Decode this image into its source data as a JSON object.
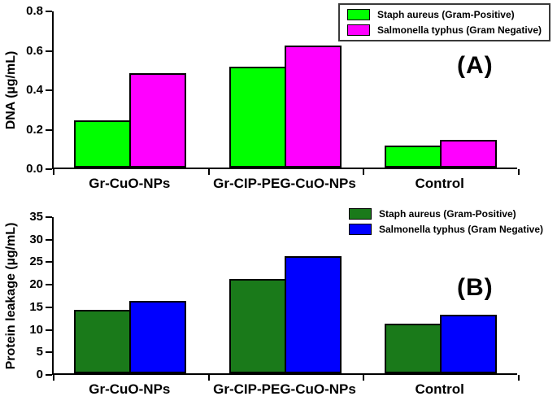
{
  "chart_data": [
    {
      "type": "bar",
      "panel_label": "(A)",
      "title": "",
      "xlabel": "",
      "ylabel": "DNA (µg/mL)",
      "categories": [
        "Gr-CuO-NPs",
        "Gr-CIP-PEG-CuO-NPs",
        "Control"
      ],
      "series": [
        {
          "name": "Staph aureus (Gram-Positive)",
          "color": "#00ff00",
          "values": [
            0.24,
            0.51,
            0.11
          ]
        },
        {
          "name": "Salmonella typhus (Gram Negative)",
          "color": "#ff00ff",
          "values": [
            0.48,
            0.62,
            0.14
          ]
        }
      ],
      "ylim": [
        0,
        0.8
      ],
      "yticks": [
        0,
        0.2,
        0.4,
        0.6,
        0.8
      ],
      "ytick_labels": [
        "0.0",
        "0.2",
        "0.4",
        "0.6",
        "0.8"
      ],
      "grid": false,
      "legend_position": "top-right",
      "legend_border": true
    },
    {
      "type": "bar",
      "panel_label": "(B)",
      "title": "",
      "xlabel": "",
      "ylabel": "Protein leakage (µg/mL)",
      "categories": [
        "Gr-CuO-NPs",
        "Gr-CIP-PEG-CuO-NPs",
        "Control"
      ],
      "series": [
        {
          "name": "Staph aureus (Gram-Positive)",
          "color": "#1a7a1a",
          "values": [
            14,
            21,
            11
          ]
        },
        {
          "name": "Salmonella typhus (Gram Negative)",
          "color": "#0000ff",
          "values": [
            16,
            26,
            13
          ]
        }
      ],
      "ylim": [
        0,
        35
      ],
      "yticks": [
        0,
        5,
        10,
        15,
        20,
        25,
        30,
        35
      ],
      "ytick_labels": [
        "0",
        "5",
        "10",
        "15",
        "20",
        "25",
        "30",
        "35"
      ],
      "grid": false,
      "legend_position": "top-right",
      "legend_border": false
    }
  ]
}
